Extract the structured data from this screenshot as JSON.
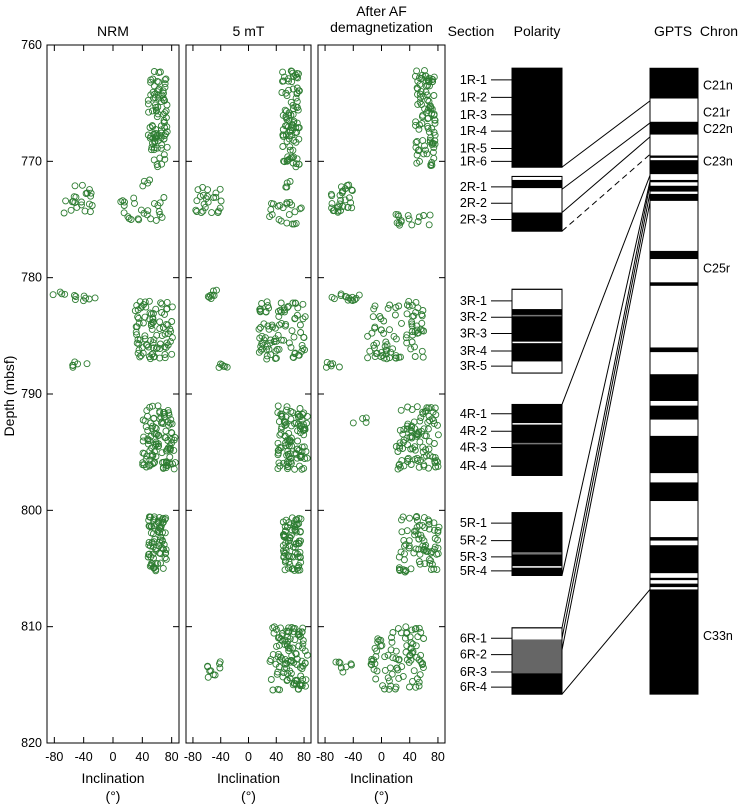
{
  "chart_data": {
    "type": "scatter",
    "ylabel": "Depth (mbsf)",
    "ylim": [
      820,
      760
    ],
    "yticks": [
      760,
      770,
      780,
      790,
      800,
      810,
      820
    ],
    "xlim": [
      -90,
      90
    ],
    "xticks": [
      -80,
      -40,
      0,
      40,
      80
    ],
    "xlabel_line1": "Inclination",
    "xlabel_line2": "(°)",
    "point_color": "#2e7d32",
    "panels": [
      {
        "title": "NRM",
        "series": [
          {
            "y0": 762.2,
            "y1": 770.5,
            "xmin": 48,
            "xmax": 74,
            "n": 95
          },
          {
            "y0": 771.5,
            "y1": 772.3,
            "xmin": 40,
            "xmax": 60,
            "n": 4
          },
          {
            "y0": 772.0,
            "y1": 774.5,
            "xmin": -68,
            "xmax": -28,
            "n": 22
          },
          {
            "y0": 773.0,
            "y1": 775.5,
            "xmin": 8,
            "xmax": 70,
            "n": 25
          },
          {
            "y0": 781.2,
            "y1": 782.0,
            "xmin": -82,
            "xmax": -20,
            "n": 12
          },
          {
            "y0": 782.0,
            "y1": 787.0,
            "xmin": 30,
            "xmax": 82,
            "n": 90
          },
          {
            "y0": 787.2,
            "y1": 787.8,
            "xmin": -55,
            "xmax": -35,
            "n": 6
          },
          {
            "y0": 791.0,
            "y1": 796.5,
            "xmin": 40,
            "xmax": 85,
            "n": 110
          },
          {
            "y0": 800.5,
            "y1": 805.3,
            "xmin": 48,
            "xmax": 74,
            "n": 80
          }
        ]
      },
      {
        "title": "5 mT",
        "series": [
          {
            "y0": 762.2,
            "y1": 770.5,
            "xmin": 48,
            "xmax": 74,
            "n": 95
          },
          {
            "y0": 771.5,
            "y1": 772.3,
            "xmin": 45,
            "xmax": 65,
            "n": 4
          },
          {
            "y0": 772.0,
            "y1": 774.5,
            "xmin": -78,
            "xmax": -35,
            "n": 24
          },
          {
            "y0": 773.5,
            "y1": 775.5,
            "xmin": 30,
            "xmax": 78,
            "n": 22
          },
          {
            "y0": 781.0,
            "y1": 782.0,
            "xmin": -58,
            "xmax": -45,
            "n": 8
          },
          {
            "y0": 782.0,
            "y1": 787.0,
            "xmin": 15,
            "xmax": 82,
            "n": 90
          },
          {
            "y0": 787.2,
            "y1": 787.8,
            "xmin": -52,
            "xmax": -28,
            "n": 6
          },
          {
            "y0": 791.0,
            "y1": 796.5,
            "xmin": 42,
            "xmax": 85,
            "n": 110
          },
          {
            "y0": 800.5,
            "y1": 805.3,
            "xmin": 50,
            "xmax": 76,
            "n": 80
          },
          {
            "y0": 810.0,
            "y1": 815.5,
            "xmin": 30,
            "xmax": 85,
            "n": 110
          },
          {
            "y0": 813.0,
            "y1": 814.5,
            "xmin": -62,
            "xmax": -28,
            "n": 10
          }
        ]
      },
      {
        "title": "After AF demagnetization",
        "series": [
          {
            "y0": 762.2,
            "y1": 770.5,
            "xmin": 48,
            "xmax": 76,
            "n": 95
          },
          {
            "y0": 772.0,
            "y1": 774.5,
            "xmin": -72,
            "xmax": -40,
            "n": 30
          },
          {
            "y0": 774.5,
            "y1": 775.5,
            "xmin": 20,
            "xmax": 70,
            "n": 16
          },
          {
            "y0": 781.2,
            "y1": 782.0,
            "xmin": -72,
            "xmax": -30,
            "n": 14
          },
          {
            "y0": 782.0,
            "y1": 787.0,
            "xmin": -20,
            "xmax": 60,
            "n": 85
          },
          {
            "y0": 787.2,
            "y1": 787.8,
            "xmin": -80,
            "xmax": -45,
            "n": 6
          },
          {
            "y0": 791.0,
            "y1": 796.5,
            "xmin": 20,
            "xmax": 82,
            "n": 100
          },
          {
            "y0": 792.0,
            "y1": 792.5,
            "xmin": -40,
            "xmax": -20,
            "n": 4
          },
          {
            "y0": 800.5,
            "y1": 805.3,
            "xmin": 25,
            "xmax": 82,
            "n": 80
          },
          {
            "y0": 810.0,
            "y1": 815.5,
            "xmin": -15,
            "xmax": 60,
            "n": 90
          },
          {
            "y0": 813.0,
            "y1": 814.0,
            "xmin": -68,
            "xmax": -40,
            "n": 8
          }
        ]
      }
    ],
    "section_header": "Section",
    "sections": [
      {
        "label": "1R-1",
        "depth": 763.0
      },
      {
        "label": "1R-2",
        "depth": 764.5
      },
      {
        "label": "1R-3",
        "depth": 766.0
      },
      {
        "label": "1R-4",
        "depth": 767.4
      },
      {
        "label": "1R-5",
        "depth": 768.9
      },
      {
        "label": "1R-6",
        "depth": 770.0
      },
      {
        "label": "2R-1",
        "depth": 772.2
      },
      {
        "label": "2R-2",
        "depth": 773.6
      },
      {
        "label": "2R-3",
        "depth": 775.0
      },
      {
        "label": "3R-1",
        "depth": 782.0
      },
      {
        "label": "3R-2",
        "depth": 783.4
      },
      {
        "label": "3R-3",
        "depth": 784.8
      },
      {
        "label": "3R-4",
        "depth": 786.3
      },
      {
        "label": "3R-5",
        "depth": 787.6
      },
      {
        "label": "4R-1",
        "depth": 791.7
      },
      {
        "label": "4R-2",
        "depth": 793.2
      },
      {
        "label": "4R-3",
        "depth": 794.6
      },
      {
        "label": "4R-4",
        "depth": 796.2
      },
      {
        "label": "5R-1",
        "depth": 801.1
      },
      {
        "label": "5R-2",
        "depth": 802.6
      },
      {
        "label": "5R-3",
        "depth": 804.0
      },
      {
        "label": "5R-4",
        "depth": 805.2
      },
      {
        "label": "6R-1",
        "depth": 811.0
      },
      {
        "label": "6R-2",
        "depth": 812.4
      },
      {
        "label": "6R-3",
        "depth": 813.9
      },
      {
        "label": "6R-4",
        "depth": 815.2
      }
    ],
    "polarity_header": "Polarity",
    "polarity_cores": [
      {
        "top": 762.0,
        "bottom": 770.5,
        "blocks": [
          {
            "top": 762.0,
            "bottom": 770.5,
            "color": "#000000"
          }
        ]
      },
      {
        "top": 771.3,
        "bottom": 776.0,
        "blocks": [
          {
            "top": 771.6,
            "bottom": 772.3,
            "color": "#000000"
          },
          {
            "top": 774.4,
            "bottom": 776.0,
            "color": "#000000"
          }
        ]
      },
      {
        "top": 781.0,
        "bottom": 788.2,
        "blocks": [
          {
            "top": 782.7,
            "bottom": 787.2,
            "color": "#000000"
          },
          {
            "top": 783.2,
            "bottom": 783.3,
            "color": "#777777"
          },
          {
            "top": 785.5,
            "bottom": 785.6,
            "color": "#ffffff"
          }
        ]
      },
      {
        "top": 790.9,
        "bottom": 797.0,
        "blocks": [
          {
            "top": 790.9,
            "bottom": 797.0,
            "color": "#000000"
          },
          {
            "top": 792.5,
            "bottom": 792.6,
            "color": "#ffffff"
          },
          {
            "top": 794.2,
            "bottom": 794.3,
            "color": "#777777"
          }
        ]
      },
      {
        "top": 800.2,
        "bottom": 805.6,
        "blocks": [
          {
            "top": 800.2,
            "bottom": 805.6,
            "color": "#000000"
          },
          {
            "top": 803.6,
            "bottom": 803.8,
            "color": "#777777"
          },
          {
            "top": 804.8,
            "bottom": 804.9,
            "color": "#ffffff"
          }
        ]
      },
      {
        "top": 810.1,
        "bottom": 815.8,
        "blocks": [
          {
            "top": 811.1,
            "bottom": 814.0,
            "color": "#666666"
          },
          {
            "top": 814.0,
            "bottom": 815.8,
            "color": "#000000"
          }
        ]
      }
    ],
    "gpts_header": "GPTS",
    "chron_header": "Chron",
    "gpts": {
      "top": 762.0,
      "bottom": 815.8,
      "blocks": [
        {
          "top": 762.0,
          "bottom": 764.6,
          "color": "#000000"
        },
        {
          "top": 766.6,
          "bottom": 767.7,
          "color": "#000000"
        },
        {
          "top": 769.5,
          "bottom": 769.7,
          "color": "#000000"
        },
        {
          "top": 769.9,
          "bottom": 771.1,
          "color": "#000000"
        },
        {
          "top": 771.6,
          "bottom": 771.8,
          "color": "#000000"
        },
        {
          "top": 772.1,
          "bottom": 772.6,
          "color": "#000000"
        },
        {
          "top": 772.8,
          "bottom": 773.4,
          "color": "#000000"
        },
        {
          "top": 777.7,
          "bottom": 778.4,
          "color": "#000000"
        },
        {
          "top": 780.4,
          "bottom": 780.7,
          "color": "#000000"
        },
        {
          "top": 786.0,
          "bottom": 786.4,
          "color": "#000000"
        },
        {
          "top": 788.3,
          "bottom": 790.6,
          "color": "#000000"
        },
        {
          "top": 791.0,
          "bottom": 792.2,
          "color": "#000000"
        },
        {
          "top": 793.6,
          "bottom": 796.8,
          "color": "#000000"
        },
        {
          "top": 797.6,
          "bottom": 799.2,
          "color": "#000000"
        },
        {
          "top": 802.3,
          "bottom": 802.6,
          "color": "#000000"
        },
        {
          "top": 803.0,
          "bottom": 805.4,
          "color": "#000000"
        },
        {
          "top": 805.8,
          "bottom": 806.0,
          "color": "#000000"
        },
        {
          "top": 806.3,
          "bottom": 806.6,
          "color": "#000000"
        },
        {
          "top": 806.8,
          "bottom": 815.8,
          "color": "#000000"
        }
      ]
    },
    "chrons": [
      {
        "label": "C21n",
        "depth": 763.5
      },
      {
        "label": "C21r",
        "depth": 765.8
      },
      {
        "label": "C22n",
        "depth": 767.2
      },
      {
        "label": "C23n",
        "depth": 770.0
      },
      {
        "label": "C25r",
        "depth": 779.2
      },
      {
        "label": "C33n",
        "depth": 810.8
      }
    ],
    "correlation_lines": [
      {
        "from": 770.5,
        "to": 764.8,
        "dashed": false
      },
      {
        "from": 772.4,
        "to": 766.7,
        "dashed": false
      },
      {
        "from": 774.4,
        "to": 767.9,
        "dashed": false
      },
      {
        "from": 776.0,
        "to": 769.4,
        "dashed": true
      },
      {
        "from": 790.9,
        "to": 771.2,
        "dashed": false
      },
      {
        "from": 805.6,
        "to": 771.7,
        "dashed": false
      },
      {
        "from": 810.1,
        "to": 772.0,
        "dashed": false
      },
      {
        "from": 811.0,
        "to": 772.7,
        "dashed": false
      },
      {
        "from": 812.0,
        "to": 773.5,
        "dashed": false
      },
      {
        "from": 815.8,
        "to": 806.8,
        "dashed": false
      }
    ]
  }
}
